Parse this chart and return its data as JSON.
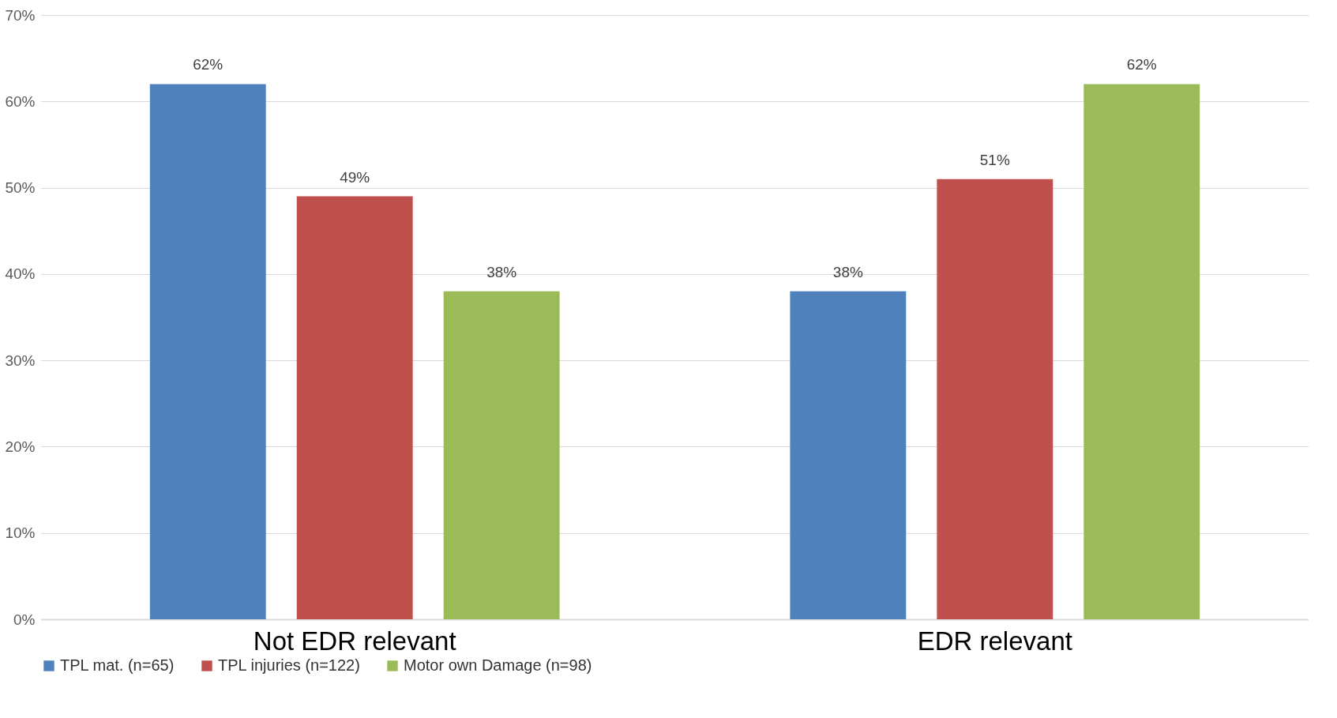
{
  "chart_data": {
    "type": "bar",
    "categories": [
      "Not EDR relevant",
      "EDR relevant"
    ],
    "series": [
      {
        "name": "TPL mat. (n=65)",
        "color": "#4f81bd",
        "values": [
          62,
          38
        ],
        "value_labels": [
          "62%",
          "38%"
        ]
      },
      {
        "name": "TPL injuries (n=122)",
        "color": "#c0504d",
        "values": [
          49,
          51
        ],
        "value_labels": [
          "49%",
          "51%"
        ]
      },
      {
        "name": "Motor own Damage (n=98)",
        "color": "#9bbb59",
        "values": [
          38,
          62
        ],
        "value_labels": [
          "38%",
          "62%"
        ]
      }
    ],
    "ylim": [
      0,
      70
    ],
    "yticks": [
      {
        "value": 0,
        "label": "0%"
      },
      {
        "value": 10,
        "label": "10%"
      },
      {
        "value": 20,
        "label": "20%"
      },
      {
        "value": 30,
        "label": "30%"
      },
      {
        "value": 40,
        "label": "40%"
      },
      {
        "value": 50,
        "label": "50%"
      },
      {
        "value": 60,
        "label": "60%"
      },
      {
        "value": 70,
        "label": "70%"
      }
    ],
    "grid": "y",
    "legend": "bottom"
  }
}
